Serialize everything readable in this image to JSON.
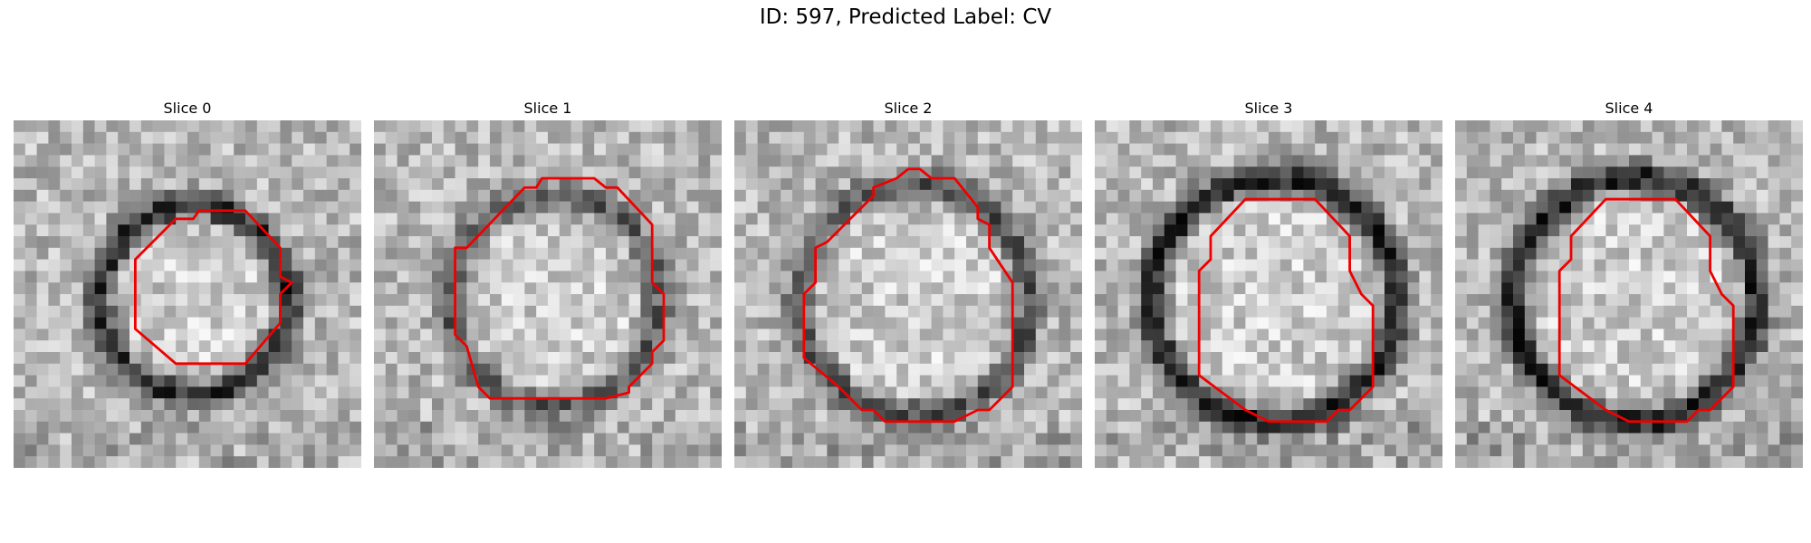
{
  "figure": {
    "title": "ID: 597, Predicted Label: CV"
  },
  "slices": [
    {
      "title": "Slice 0",
      "seed": 11,
      "ring_radius": 0.27,
      "ring_dark": 0.55
    },
    {
      "title": "Slice 1",
      "seed": 23,
      "ring_radius": 0.3,
      "ring_dark": 0.35
    },
    {
      "title": "Slice 2",
      "seed": 37,
      "ring_radius": 0.33,
      "ring_dark": 0.4
    },
    {
      "title": "Slice 3",
      "seed": 41,
      "ring_radius": 0.35,
      "ring_dark": 0.6
    },
    {
      "title": "Slice 4",
      "seed": 53,
      "ring_radius": 0.35,
      "ring_dark": 0.6
    }
  ],
  "contour_color": "#ee0000",
  "colormap": "gray"
}
